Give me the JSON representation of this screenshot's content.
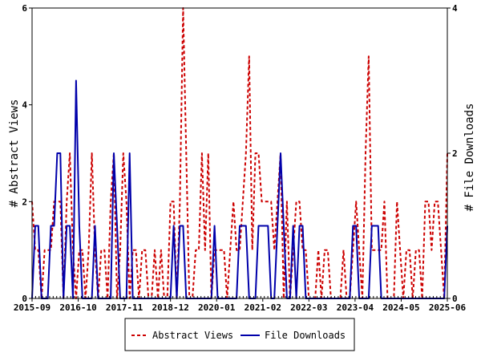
{
  "chart_data": {
    "type": "line",
    "xlim": [
      "2015-09",
      "2025-06"
    ],
    "x_tick_labels": [
      "2015-09",
      "2016-10",
      "2017-11",
      "2018-12",
      "2020-01",
      "2021-02",
      "2022-03",
      "2023-04",
      "2024-05",
      "2025-06"
    ],
    "y_left": {
      "label": "# Abstract Views",
      "lim": [
        0,
        6
      ],
      "ticks": [
        "0",
        "2",
        "4",
        "6"
      ]
    },
    "y_right": {
      "label": "# File Downloads",
      "lim": [
        0,
        4
      ],
      "ticks": [
        "0",
        "2",
        "4"
      ]
    },
    "grid": false,
    "legend_position": "bottom-center",
    "series": [
      {
        "name": "Abstract Views",
        "axis": "left",
        "color": "#cc0000",
        "style": "dashed",
        "values": [
          2,
          1,
          1,
          0,
          1,
          1,
          1,
          2,
          2,
          2,
          0,
          2,
          3,
          1,
          0,
          1,
          1,
          0,
          1,
          3,
          1,
          0,
          1,
          1,
          0,
          2,
          3,
          0,
          1,
          3,
          2,
          0,
          1,
          1,
          0,
          1,
          1,
          0,
          0,
          1,
          0,
          1,
          0,
          0,
          2,
          2,
          0,
          2,
          6,
          3,
          0,
          0,
          1,
          1,
          3,
          1,
          3,
          0,
          1,
          1,
          1,
          1,
          0,
          1,
          2,
          1,
          1,
          2,
          3,
          5,
          1,
          3,
          3,
          2,
          2,
          2,
          2,
          1,
          2,
          3,
          0,
          2,
          0,
          1,
          2,
          2,
          1,
          1,
          0,
          0,
          0,
          1,
          0,
          1,
          1,
          0,
          0,
          0,
          0,
          1,
          0,
          0,
          1,
          2,
          1,
          0,
          3,
          5,
          1,
          1,
          1,
          1,
          2,
          0,
          0,
          0,
          2,
          1,
          0,
          1,
          1,
          0,
          1,
          1,
          0,
          2,
          2,
          1,
          2,
          2,
          1,
          0,
          3
        ]
      },
      {
        "name": "File Downloads",
        "axis": "right",
        "color": "#0000aa",
        "style": "solid",
        "values": [
          0,
          1,
          1,
          0,
          0,
          0,
          1,
          1,
          2,
          2,
          0,
          1,
          1,
          0,
          3,
          1,
          0,
          0,
          0,
          0,
          1,
          0,
          0,
          0,
          0,
          0,
          2,
          1,
          0,
          0,
          0,
          2,
          0,
          0,
          0,
          0,
          0,
          0,
          0,
          0,
          0,
          0,
          0,
          0,
          0,
          1,
          0,
          1,
          1,
          0,
          0,
          0,
          0,
          0,
          0,
          0,
          0,
          0,
          1,
          0,
          0,
          0,
          0,
          0,
          0,
          0,
          1,
          1,
          1,
          0,
          0,
          0,
          1,
          1,
          1,
          1,
          0,
          0,
          1,
          2,
          1,
          0,
          0,
          1,
          0,
          1,
          1,
          0,
          0,
          0,
          0,
          0,
          0,
          0,
          0,
          0,
          0,
          0,
          0,
          0,
          0,
          0,
          1,
          1,
          0,
          0,
          0,
          0,
          1,
          1,
          1,
          0,
          0,
          0,
          0,
          0,
          0,
          0,
          0,
          0,
          0,
          0,
          0,
          0,
          0,
          0,
          0,
          0,
          0,
          0,
          0,
          0,
          1
        ]
      }
    ]
  }
}
